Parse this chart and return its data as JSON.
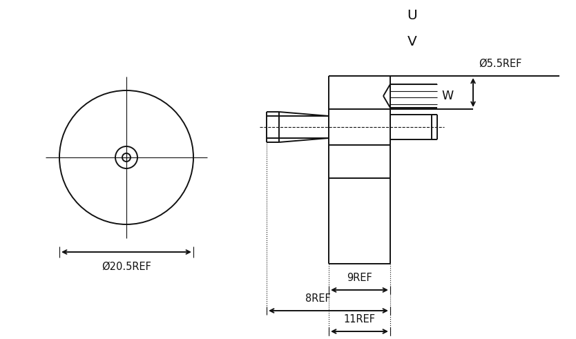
{
  "bg_color": "#ffffff",
  "line_color": "#111111",
  "lw": 1.4,
  "tlw": 0.8,
  "fig_width": 8.34,
  "fig_height": 4.91,
  "labels": {
    "U": "U",
    "V": "V",
    "W": "W",
    "dia_motor": "Ø20.5REF",
    "dia_wire": "Ø5.5REF",
    "dim_9": "9REF",
    "dim_8": "8REF",
    "dim_11": "11REF"
  },
  "fs": 10.5
}
